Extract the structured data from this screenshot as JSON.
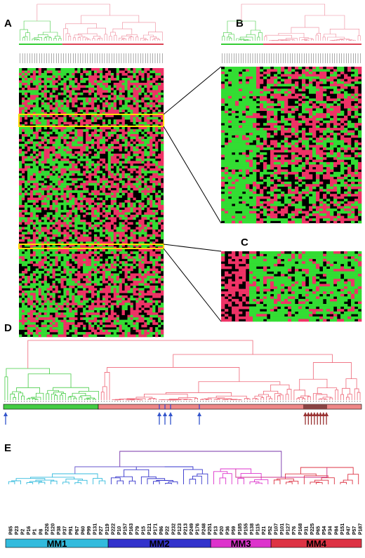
{
  "panels": {
    "a": "A",
    "b": "B",
    "c": "C",
    "d": "D",
    "e": "E"
  },
  "e": {
    "leaves": [
      "P85",
      "P23",
      "P2",
      "P16",
      "P1",
      "P8",
      "P226",
      "P120",
      "P38",
      "P37",
      "P91",
      "P67",
      "P60",
      "P99",
      "P131",
      "P27",
      "P119",
      "P222",
      "P10",
      "P157",
      "P163",
      "P79",
      "P15",
      "P121",
      "P171",
      "P86",
      "P22",
      "P232",
      "P123",
      "P213",
      "P249",
      "P176",
      "P248",
      "P251",
      "P13",
      "P20",
      "P36",
      "P59",
      "P185",
      "P155",
      "P138",
      "P115",
      "P21",
      "P52",
      "P107",
      "P101",
      "P127",
      "P76",
      "P168",
      "P31",
      "P225",
      "P65",
      "P54",
      "P34",
      "P84",
      "P151",
      "P47",
      "P57",
      "P187"
    ],
    "clusters": [
      "MM1",
      "MM2",
      "MM3",
      "MM4"
    ]
  }
}
